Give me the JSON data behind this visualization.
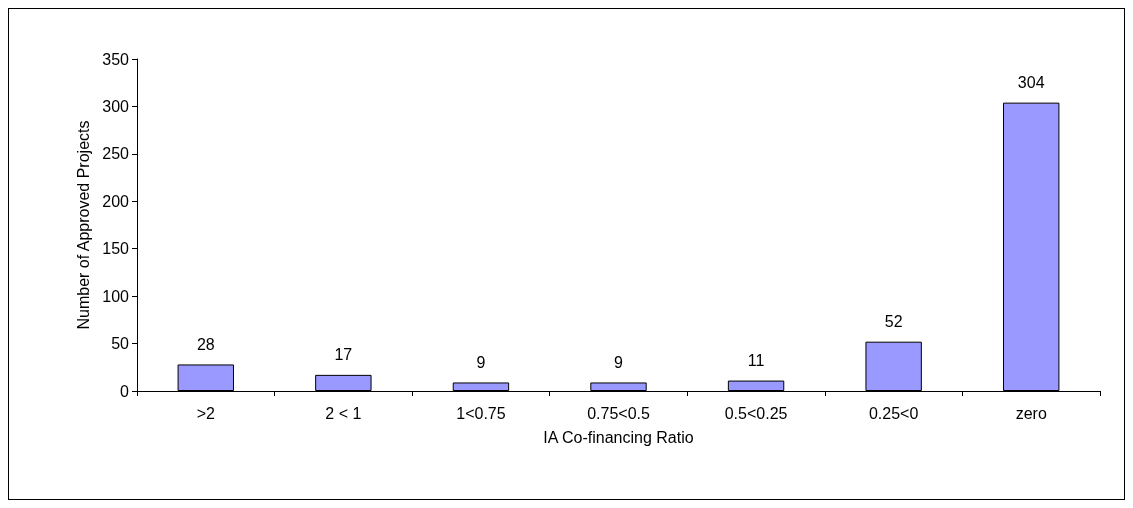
{
  "chart_data": {
    "type": "bar",
    "xlabel": "IA Co-financing Ratio",
    "ylabel": "Number of Approved Projects",
    "categories": [
      ">2",
      "2 < 1",
      "1<0.75",
      "0.75<0.5",
      "0.5<0.25",
      "0.25<0",
      "zero"
    ],
    "values": [
      28,
      17,
      9,
      9,
      11,
      52,
      304
    ],
    "color": "#9999ff",
    "ylim": [
      0,
      350
    ],
    "yticks": [
      0,
      50,
      100,
      150,
      200,
      250,
      300,
      350
    ],
    "grid": false,
    "data_labels": true
  }
}
